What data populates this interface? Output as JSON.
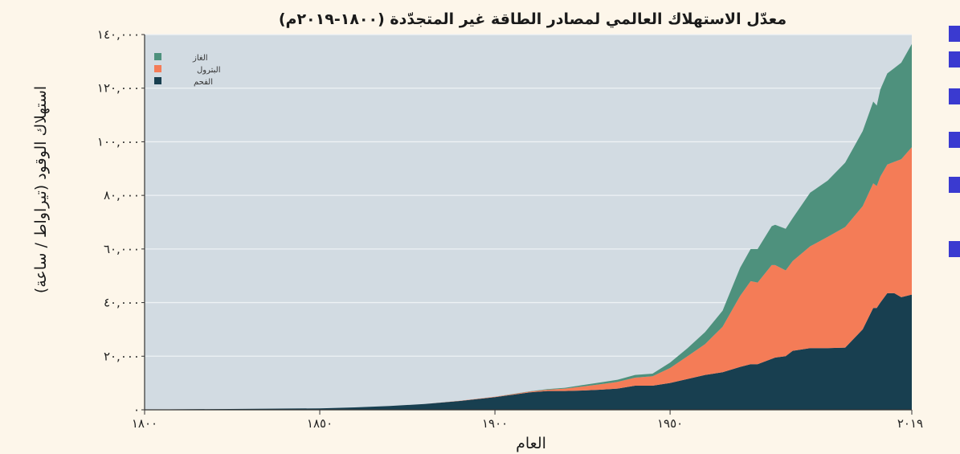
{
  "colors": {
    "gas": "#4e917d",
    "oil": "#f47c57",
    "coal": "#183f50",
    "plot_bg": "#d2dbe2",
    "grid": "#eef2f5",
    "page_bg": "#fdf6ea",
    "side_marker": "#3a3ad0"
  },
  "chart_data": {
    "type": "area",
    "stacked": true,
    "title": "معدّل الاستهلاك العالمي لمصادر الطاقة غير المتجدّدة (١٨٠٠-٢٠١٩م)",
    "xlabel": "العام",
    "ylabel": "استهلاك الوقود (تيراواط / ساعة)",
    "xlim": [
      1800,
      2019
    ],
    "ylim": [
      0,
      140000
    ],
    "grid": true,
    "legend_position": "top-left",
    "x_ticks": [
      {
        "value": 1800,
        "label": "١٨٠٠"
      },
      {
        "value": 1850,
        "label": "١٨٥٠"
      },
      {
        "value": 1900,
        "label": "١٩٠٠"
      },
      {
        "value": 1950,
        "label": "١٩٥٠"
      },
      {
        "value": 2019,
        "label": "٢٠١٩"
      }
    ],
    "y_ticks": [
      {
        "value": 0,
        "label": "٠"
      },
      {
        "value": 20000,
        "label": "٢٠,٠٠٠"
      },
      {
        "value": 40000,
        "label": "٤٠,٠٠٠"
      },
      {
        "value": 60000,
        "label": "٦٠,٠٠٠"
      },
      {
        "value": 80000,
        "label": "٨٠,٠٠٠"
      },
      {
        "value": 100000,
        "label": "١٠٠,٠٠٠"
      },
      {
        "value": 120000,
        "label": "١٢٠,٠٠٠"
      },
      {
        "value": 140000,
        "label": "١٤٠,٠٠٠"
      }
    ],
    "x": [
      1800,
      1850,
      1860,
      1870,
      1880,
      1890,
      1900,
      1910,
      1915,
      1920,
      1925,
      1930,
      1935,
      1940,
      1945,
      1950,
      1955,
      1960,
      1965,
      1970,
      1973,
      1975,
      1979,
      1980,
      1983,
      1985,
      1990,
      1995,
      2000,
      2005,
      2008,
      2009,
      2010,
      2012,
      2014,
      2016,
      2019
    ],
    "series": [
      {
        "key": "coal",
        "name": "الفحم",
        "values": [
          100,
          550,
          900,
          1400,
          2200,
          3300,
          4700,
          6500,
          7000,
          7000,
          7200,
          7500,
          7900,
          9000,
          9000,
          10000,
          11500,
          13000,
          14000,
          16000,
          17000,
          17000,
          19000,
          19500,
          20000,
          22000,
          23000,
          23000,
          23200,
          30000,
          38000,
          38000,
          40000,
          43500,
          43500,
          42000,
          43000
        ]
      },
      {
        "key": "oil",
        "name": "البترول",
        "values": [
          0,
          0,
          0,
          0,
          0,
          50,
          150,
          300,
          500,
          900,
          1500,
          2000,
          2500,
          3000,
          3500,
          5600,
          8500,
          11500,
          17000,
          26500,
          31000,
          30500,
          35000,
          34500,
          32000,
          33500,
          38000,
          41500,
          45000,
          46000,
          46500,
          45500,
          47000,
          48000,
          49000,
          51500,
          55000
        ]
      },
      {
        "key": "gas",
        "name": "الغاز",
        "values": [
          0,
          0,
          0,
          0,
          0,
          0,
          50,
          100,
          200,
          300,
          500,
          700,
          800,
          1000,
          1000,
          2000,
          3000,
          4500,
          6000,
          10500,
          12000,
          12500,
          14500,
          15000,
          15500,
          16000,
          20000,
          21000,
          24000,
          28000,
          30500,
          30000,
          32500,
          34000,
          35000,
          36000,
          38500
        ]
      }
    ]
  }
}
